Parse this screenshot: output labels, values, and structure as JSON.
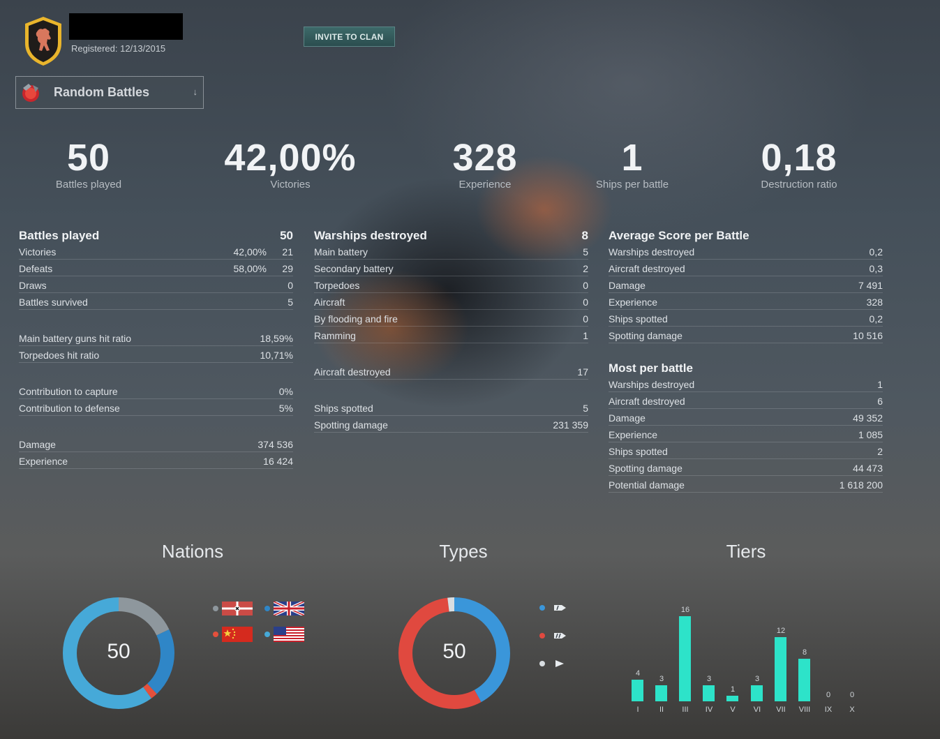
{
  "header": {
    "registered": "Registered: 12/13/2015",
    "invite_label": "INVITE TO CLAN",
    "mode_label": "Random Battles",
    "emblem_icon": "bear-emblem-icon",
    "mode_icon": "random-battles-icon"
  },
  "summary": [
    {
      "value": "50",
      "label": "Battles played"
    },
    {
      "value": "42,00%",
      "label": "Victories"
    },
    {
      "value": "328",
      "label": "Experience"
    },
    {
      "value": "1",
      "label": "Ships per battle"
    },
    {
      "value": "0,18",
      "label": "Destruction ratio"
    }
  ],
  "col1": {
    "title": "Battles played",
    "title_value": "50",
    "groups": [
      [
        {
          "label": "Victories",
          "pct": "42,00%",
          "value": "21"
        },
        {
          "label": "Defeats",
          "pct": "58,00%",
          "value": "29"
        },
        {
          "label": "Draws",
          "pct": "",
          "value": "0"
        },
        {
          "label": "Battles survived",
          "pct": "",
          "value": "5"
        }
      ],
      [
        {
          "label": "Main battery guns hit ratio",
          "pct": "",
          "value": "18,59%"
        },
        {
          "label": "Torpedoes hit ratio",
          "pct": "",
          "value": "10,71%"
        }
      ],
      [
        {
          "label": "Contribution to capture",
          "pct": "",
          "value": "0%"
        },
        {
          "label": "Contribution to defense",
          "pct": "",
          "value": "5%"
        }
      ],
      [
        {
          "label": "Damage",
          "pct": "",
          "value": "374 536"
        },
        {
          "label": "Experience",
          "pct": "",
          "value": "16 424"
        }
      ]
    ]
  },
  "col2": {
    "title": "Warships destroyed",
    "title_value": "8",
    "groups": [
      [
        {
          "label": "Main battery",
          "value": "5"
        },
        {
          "label": "Secondary battery",
          "value": "2"
        },
        {
          "label": "Torpedoes",
          "value": "0"
        },
        {
          "label": "Aircraft",
          "value": "0"
        },
        {
          "label": "By flooding and fire",
          "value": "0"
        },
        {
          "label": "Ramming",
          "value": "1"
        }
      ],
      [
        {
          "label": "Aircraft destroyed",
          "value": "17"
        }
      ],
      [
        {
          "label": "Ships spotted",
          "value": "5"
        },
        {
          "label": "Spotting damage",
          "value": "231 359"
        }
      ]
    ]
  },
  "col3": {
    "title": "Average Score per Battle",
    "rows": [
      {
        "label": "Warships destroyed",
        "value": "0,2"
      },
      {
        "label": "Aircraft destroyed",
        "value": "0,3"
      },
      {
        "label": "Damage",
        "value": "7 491"
      },
      {
        "label": "Experience",
        "value": "328"
      },
      {
        "label": "Ships spotted",
        "value": "0,2"
      },
      {
        "label": "Spotting damage",
        "value": "10 516"
      }
    ],
    "title2": "Most per battle",
    "rows2": [
      {
        "label": "Warships destroyed",
        "value": "1"
      },
      {
        "label": "Aircraft destroyed",
        "value": "6"
      },
      {
        "label": "Damage",
        "value": "49 352"
      },
      {
        "label": "Experience",
        "value": "1 085"
      },
      {
        "label": "Ships spotted",
        "value": "2"
      },
      {
        "label": "Spotting damage",
        "value": "44 473"
      },
      {
        "label": "Potential damage",
        "value": "1 618 200"
      }
    ]
  },
  "sections": {
    "nations": "Nations",
    "types": "Types",
    "tiers": "Tiers"
  },
  "chart_data": [
    {
      "type": "pie",
      "total": "50",
      "slices": [
        {
          "color": "#8e979d",
          "fraction": 0.18,
          "flag": "germany-flag-icon"
        },
        {
          "color": "#2f86c7",
          "fraction": 0.2,
          "flag": "uk-flag-icon"
        },
        {
          "color": "#e4503c",
          "fraction": 0.02,
          "flag": "china-flag-icon"
        },
        {
          "color": "#46a9d8",
          "fraction": 0.6,
          "flag": "usa-flag-icon"
        }
      ]
    },
    {
      "type": "pie",
      "total": "50",
      "slices": [
        {
          "color": "#3a96da",
          "fraction": 0.42,
          "icon": "destroyer-icon"
        },
        {
          "color": "#e0493f",
          "fraction": 0.56,
          "icon": "cruiser-icon"
        },
        {
          "color": "#d8dde1",
          "fraction": 0.02,
          "icon": "battleship-icon"
        }
      ]
    },
    {
      "type": "bar",
      "categories": [
        "I",
        "II",
        "III",
        "IV",
        "V",
        "VI",
        "VII",
        "VIII",
        "IX",
        "X"
      ],
      "values": [
        4,
        3,
        16,
        3,
        1,
        3,
        12,
        8,
        0,
        0
      ],
      "ylim": [
        0,
        16
      ],
      "color": "#2de3c9"
    }
  ]
}
